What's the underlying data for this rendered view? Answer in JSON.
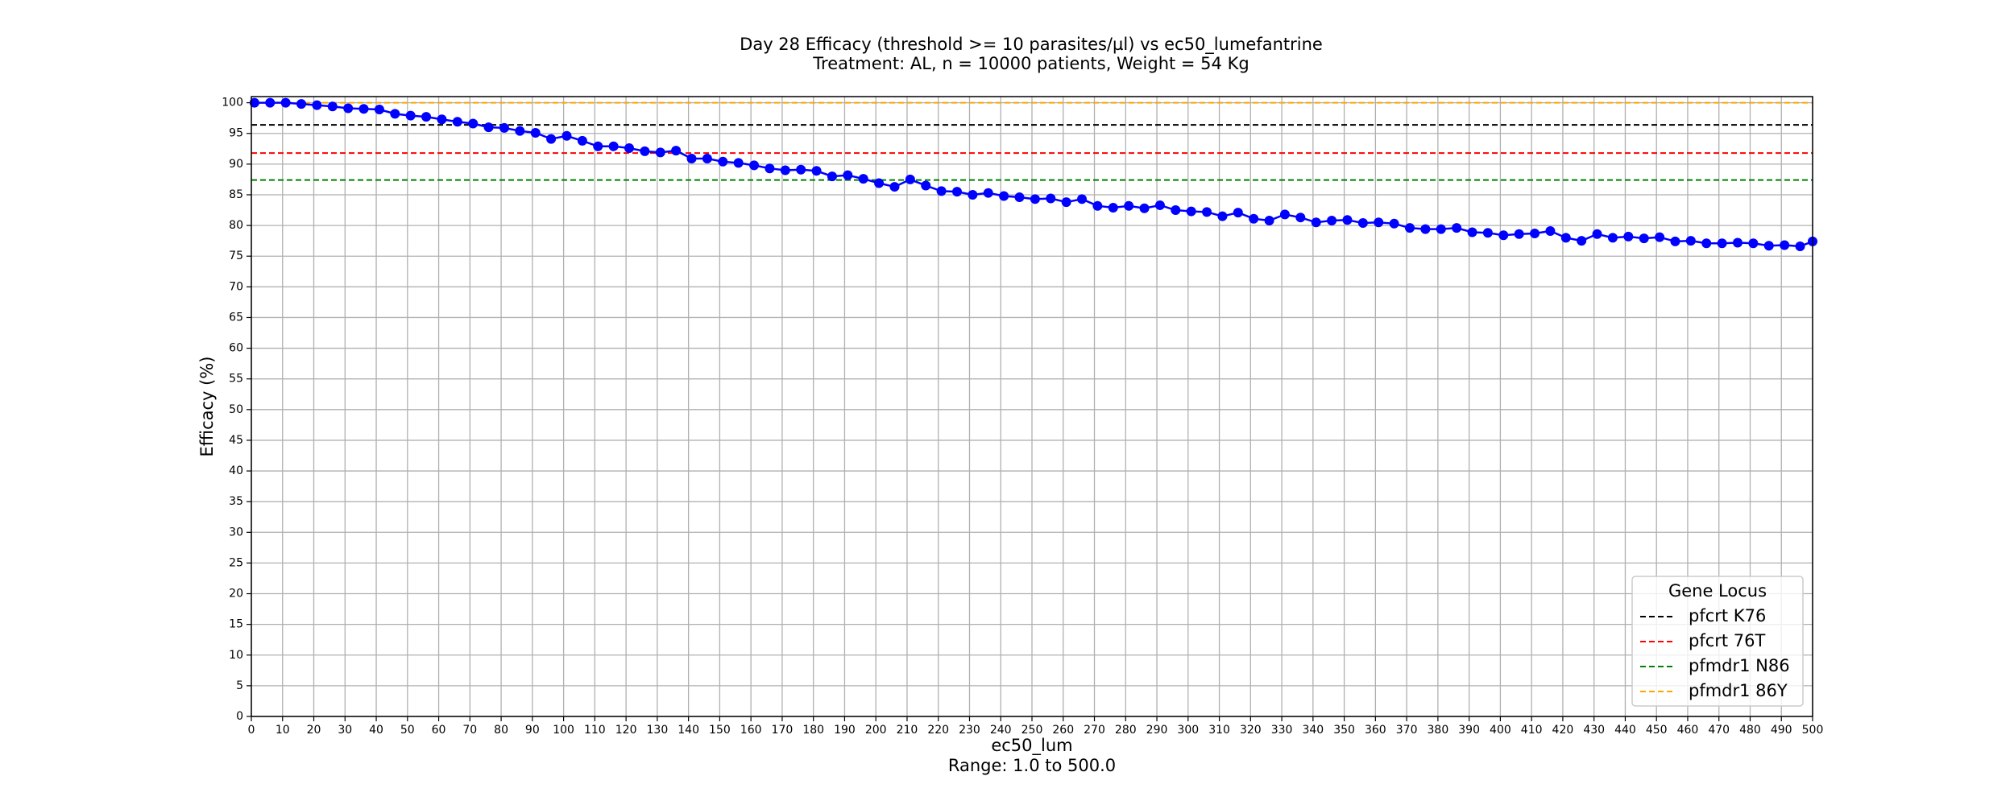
{
  "chart_data": {
    "type": "line",
    "title": "Day 28 Efficacy (threshold >= 10 parasites/µl) vs ec50_lumefantrine",
    "subtitle": "Treatment: AL, n = 10000 patients, Weight = 54 Kg",
    "x_label": "ec50_lum",
    "x_note": "Range: 1.0 to 500.0",
    "y_label": "Efficacy (%)",
    "legend_title": "Gene Locus",
    "legend_position": "lower right",
    "grid": true,
    "xlim": [
      0,
      500
    ],
    "ylim": [
      0,
      101
    ],
    "xticks": [
      0,
      10,
      20,
      30,
      40,
      50,
      60,
      70,
      80,
      90,
      100,
      110,
      120,
      130,
      140,
      150,
      160,
      170,
      180,
      190,
      200,
      210,
      220,
      230,
      240,
      250,
      260,
      270,
      280,
      290,
      300,
      310,
      320,
      330,
      340,
      350,
      360,
      370,
      380,
      390,
      400,
      410,
      420,
      430,
      440,
      450,
      460,
      470,
      480,
      490,
      500
    ],
    "yticks": [
      0,
      5,
      10,
      15,
      20,
      25,
      30,
      35,
      40,
      45,
      50,
      55,
      60,
      65,
      70,
      75,
      80,
      85,
      90,
      95,
      100
    ],
    "series": [
      {
        "color": "#0000ff",
        "x": [
          1,
          6,
          11,
          16,
          21,
          26,
          31,
          36,
          41,
          46,
          51,
          56,
          61,
          66,
          71,
          76,
          81,
          86,
          91,
          96,
          101,
          106,
          111,
          116,
          121,
          126,
          131,
          136,
          141,
          146,
          151,
          156,
          161,
          166,
          171,
          176,
          181,
          186,
          191,
          196,
          201,
          206,
          211,
          216,
          221,
          226,
          231,
          236,
          241,
          246,
          251,
          256,
          261,
          266,
          271,
          276,
          281,
          286,
          291,
          296,
          301,
          306,
          311,
          316,
          321,
          326,
          331,
          336,
          341,
          346,
          351,
          356,
          361,
          366,
          371,
          376,
          381,
          386,
          391,
          396,
          401,
          406,
          411,
          416,
          421,
          426,
          431,
          436,
          441,
          446,
          451,
          456,
          461,
          466,
          471,
          476,
          481,
          486,
          491,
          496,
          500
        ],
        "values": [
          100,
          100,
          100,
          99.8,
          99.6,
          99.4,
          99.1,
          99.0,
          98.9,
          98.2,
          97.9,
          97.7,
          97.3,
          96.9,
          96.6,
          96.0,
          95.9,
          95.4,
          95.1,
          94.1,
          94.6,
          93.8,
          92.9,
          92.9,
          92.6,
          92.1,
          91.9,
          92.2,
          90.9,
          90.9,
          90.4,
          90.2,
          89.8,
          89.3,
          89.0,
          89.1,
          88.9,
          88.0,
          88.2,
          87.6,
          86.9,
          86.3,
          87.5,
          86.5,
          85.6,
          85.5,
          85.0,
          85.3,
          84.8,
          84.6,
          84.3,
          84.4,
          83.8,
          84.3,
          83.2,
          82.9,
          83.2,
          82.8,
          83.3,
          82.5,
          82.3,
          82.2,
          81.5,
          82.1,
          81.1,
          80.8,
          81.8,
          81.3,
          80.5,
          80.8,
          80.9,
          80.4,
          80.5,
          80.3,
          79.6,
          79.4,
          79.4,
          79.6,
          78.9,
          78.8,
          78.4,
          78.6,
          78.7,
          79.1,
          78.0,
          77.5,
          78.6,
          78.0,
          78.2,
          77.9,
          78.1,
          77.4,
          77.5,
          77.1,
          77.1,
          77.2,
          77.1,
          76.7,
          76.8,
          76.6,
          77.4
        ]
      }
    ],
    "reference_lines": [
      {
        "name": "pfcrt K76",
        "color": "#000000",
        "value": 96.4
      },
      {
        "name": "pfcrt 76T",
        "color": "#ff0000",
        "value": 91.8
      },
      {
        "name": "pfmdr1 N86",
        "color": "#008000",
        "value": 87.4
      },
      {
        "name": "pfmdr1 86Y",
        "color": "#ffa500",
        "value": 100
      }
    ]
  }
}
